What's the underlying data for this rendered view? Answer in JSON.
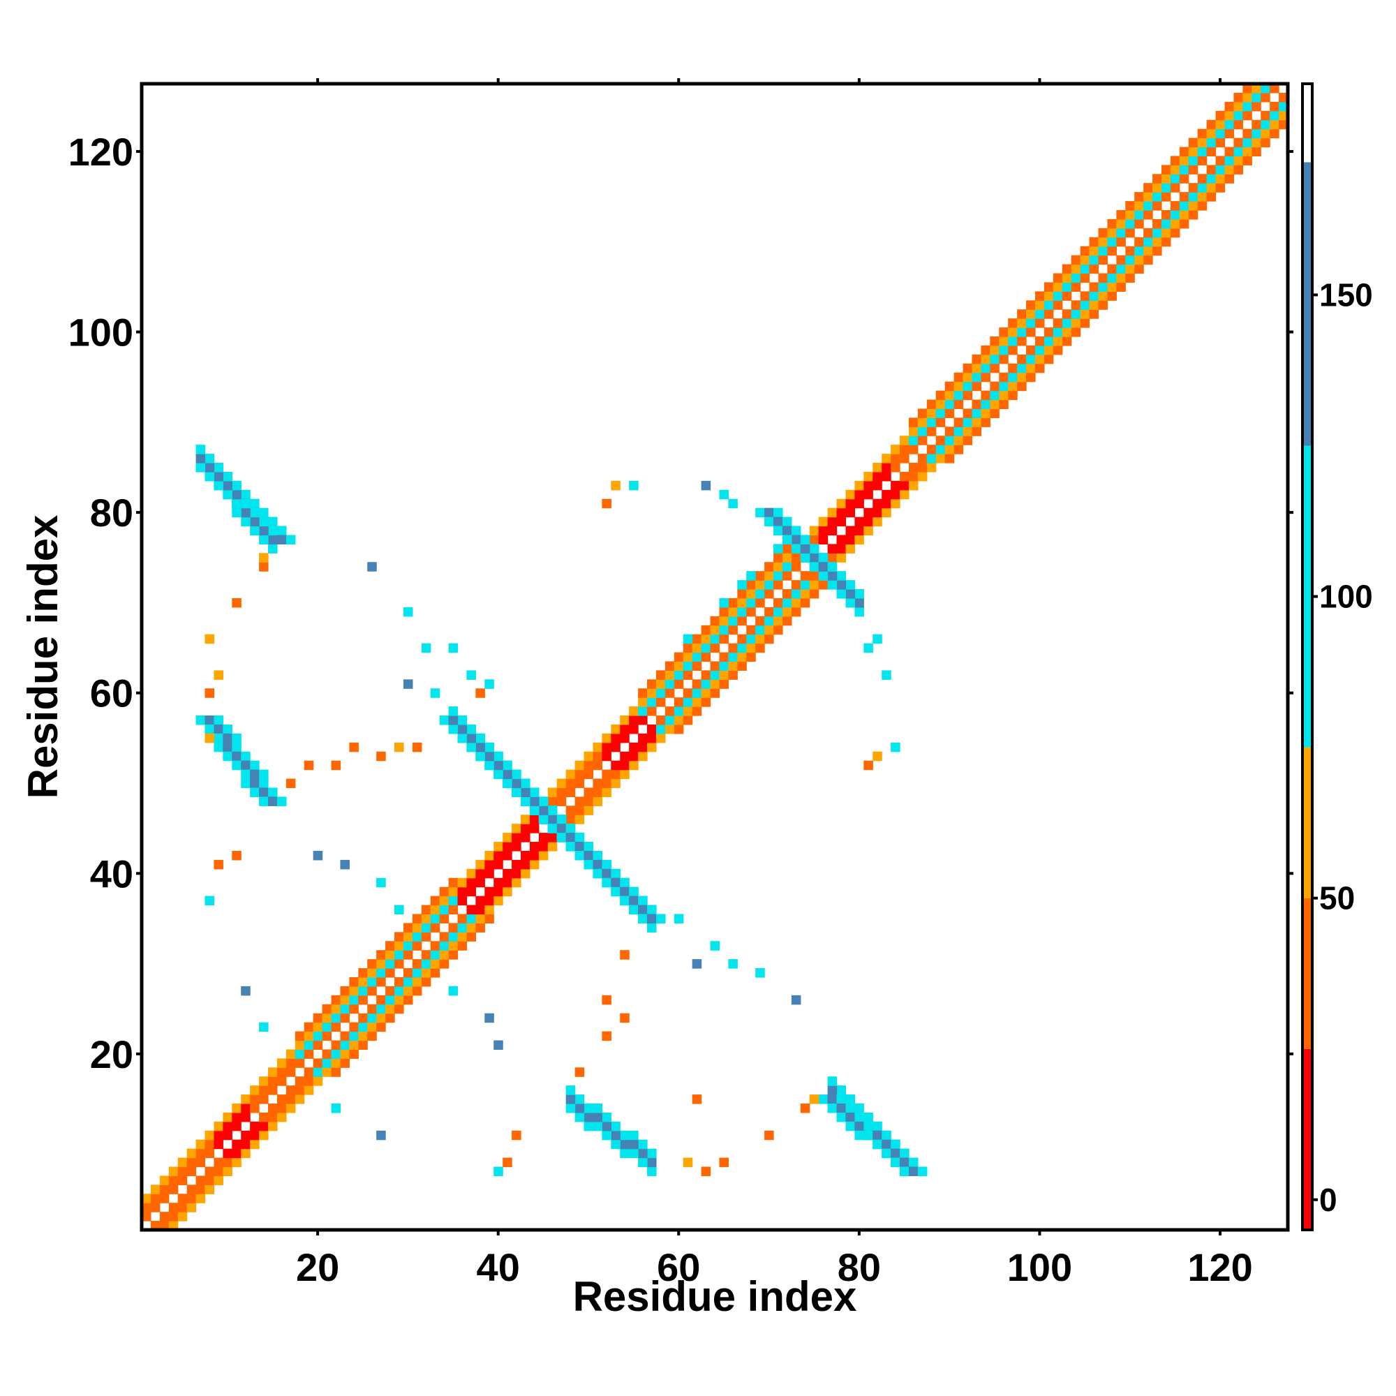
{
  "chart_data": {
    "type": "heatmap",
    "title": "",
    "xlabel": "Residue index",
    "ylabel": "Residue index",
    "xlim": [
      1,
      127
    ],
    "ylim": [
      1,
      127
    ],
    "x_ticks": [
      20,
      40,
      60,
      80,
      100,
      120
    ],
    "y_ticks": [
      20,
      40,
      60,
      80,
      100,
      120
    ],
    "x_tick_labels": [
      "20",
      "40",
      "60",
      "80",
      "100",
      "120"
    ],
    "y_tick_labels": [
      "20",
      "40",
      "60",
      "80",
      "100",
      "120"
    ],
    "grid": false,
    "colorbar": {
      "range": [
        -5,
        185
      ],
      "ticks": [
        0,
        50,
        100,
        150
      ],
      "tick_labels": [
        "0",
        "50",
        "100",
        "150"
      ],
      "bands": [
        {
          "from": -5,
          "to": 25,
          "color": "#ff0000"
        },
        {
          "from": 25,
          "to": 50,
          "color": "#ff6600"
        },
        {
          "from": 50,
          "to": 75,
          "color": "#ffa500"
        },
        {
          "from": 75,
          "to": 125,
          "color": "#00e5ee"
        },
        {
          "from": 125,
          "to": 172,
          "color": "#4682b4"
        },
        {
          "from": 172,
          "to": 185,
          "color": "#ffffff"
        }
      ]
    },
    "colors": {
      "red": "#ff0000",
      "orange_red": "#ff6600",
      "orange": "#ffa500",
      "cyan": "#00e5ee",
      "steel_blue": "#4682b4",
      "light_cyan": "#1fd0e8"
    },
    "regions": [
      {
        "name": "diagonal band i,i+1..i+4",
        "from": 1,
        "to": 127,
        "values_by_offset": {
          "1": 40,
          "2": 100,
          "3": 60,
          "4": 45
        }
      },
      {
        "name": "antiparallel sheet 8-16 / 76-86",
        "x": [
          8,
          16
        ],
        "y": [
          77,
          86
        ],
        "value": 140
      },
      {
        "name": "antiparallel sheet 35-47 / 45-57",
        "x": [
          35,
          47
        ],
        "y": [
          45,
          57
        ],
        "value": 145
      },
      {
        "name": "sheet 8-16 / 48-57",
        "x": [
          8,
          16
        ],
        "y": [
          48,
          57
        ],
        "value": 140
      },
      {
        "name": "contacts 60-82 / 15-30",
        "x": [
          60,
          82
        ],
        "y": [
          13,
          30
        ],
        "value": 40
      },
      {
        "name": "sheet 48-57 / 6-16",
        "x": [
          48,
          57
        ],
        "y": [
          6,
          16
        ],
        "value": 140
      },
      {
        "name": "sheet 77-86 / 6-16",
        "x": [
          77,
          86
        ],
        "y": [
          6,
          16
        ],
        "value": 140
      }
    ]
  }
}
